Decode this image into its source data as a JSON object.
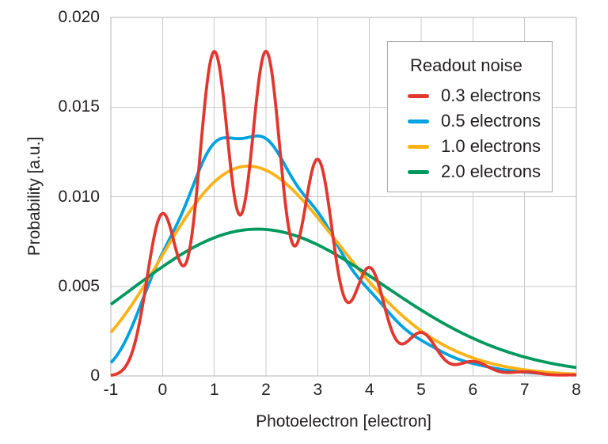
{
  "figure": {
    "background": "#ffffff"
  },
  "chart_data": {
    "type": "line",
    "title": "",
    "xlabel": "Photoelectron [electron]",
    "ylabel": "Probability [a.u.]",
    "xlim": [
      -1,
      8
    ],
    "ylim": [
      0,
      0.02
    ],
    "xticks": {
      "values": [
        -1,
        0,
        1,
        2,
        3,
        4,
        5,
        6,
        7,
        8
      ],
      "labels": [
        "-1",
        "0",
        "1",
        "2",
        "3",
        "4",
        "5",
        "6",
        "7",
        "8"
      ]
    },
    "yticks": {
      "values": [
        0,
        0.005,
        0.01,
        0.015,
        0.02
      ],
      "labels": [
        "0",
        "0.005",
        "0.010",
        "0.015",
        "0.020"
      ]
    },
    "grid": true,
    "legend": {
      "title": "Readout noise",
      "position": "upper-right"
    },
    "style": {
      "grid_color": "#c9c9c9",
      "frame_color": "#b3b3b3",
      "text_color": "#231f20",
      "background": "#ffffff",
      "line_width": 3.8
    },
    "model": {
      "description": "Poisson photon-number distribution (mean 2 photoelectrons) convolved with Gaussian readout noise of width sigma; amplitude in arbitrary units",
      "poisson_mean": 2,
      "amplitude_scale": 0.05,
      "sample_step": 0.02,
      "n_max": 14
    },
    "series": [
      {
        "label": "0.3 electrons",
        "sigma": 0.3,
        "color": "#e1372e",
        "key_points": [
          {
            "x": -1,
            "y": 0.0001
          },
          {
            "x": 0,
            "y": 0.009
          },
          {
            "x": 0.5,
            "y": 0.0067
          },
          {
            "x": 1,
            "y": 0.0181
          },
          {
            "x": 1.5,
            "y": 0.009
          },
          {
            "x": 2,
            "y": 0.0181
          },
          {
            "x": 2.5,
            "y": 0.0073
          },
          {
            "x": 3,
            "y": 0.012
          },
          {
            "x": 3.5,
            "y": 0.0042
          },
          {
            "x": 4,
            "y": 0.006
          },
          {
            "x": 5,
            "y": 0.0024
          },
          {
            "x": 6,
            "y": 0.0008
          },
          {
            "x": 8,
            "y": 0.0
          }
        ]
      },
      {
        "label": "0.5 electrons",
        "sigma": 0.5,
        "color": "#00a2e0",
        "key_points": [
          {
            "x": -1,
            "y": 0.0008
          },
          {
            "x": 0,
            "y": 0.0069
          },
          {
            "x": 1,
            "y": 0.013
          },
          {
            "x": 1.5,
            "y": 0.0133
          },
          {
            "x": 2,
            "y": 0.0132
          },
          {
            "x": 3,
            "y": 0.0092
          },
          {
            "x": 4,
            "y": 0.0048
          },
          {
            "x": 5,
            "y": 0.002
          },
          {
            "x": 6,
            "y": 0.0007
          },
          {
            "x": 8,
            "y": 0.0001
          }
        ]
      },
      {
        "label": "1.0 electrons",
        "sigma": 1.0,
        "color": "#f9b317",
        "key_points": [
          {
            "x": -1,
            "y": 0.0025
          },
          {
            "x": 0,
            "y": 0.0067
          },
          {
            "x": 1,
            "y": 0.0108
          },
          {
            "x": 1.8,
            "y": 0.0117
          },
          {
            "x": 3,
            "y": 0.0088
          },
          {
            "x": 4,
            "y": 0.005
          },
          {
            "x": 5,
            "y": 0.0022
          },
          {
            "x": 6,
            "y": 0.0008
          },
          {
            "x": 8,
            "y": 0.0002
          }
        ]
      },
      {
        "label": "2.0 electrons",
        "sigma": 2.0,
        "color": "#00985e",
        "key_points": [
          {
            "x": -1,
            "y": 0.004
          },
          {
            "x": 0,
            "y": 0.0061
          },
          {
            "x": 1.8,
            "y": 0.0082
          },
          {
            "x": 3,
            "y": 0.0075
          },
          {
            "x": 4,
            "y": 0.0059
          },
          {
            "x": 5,
            "y": 0.004
          },
          {
            "x": 6,
            "y": 0.0024
          },
          {
            "x": 7,
            "y": 0.0012
          },
          {
            "x": 8,
            "y": 0.0005
          }
        ]
      }
    ],
    "draw_order": [
      1,
      2,
      3,
      0
    ]
  }
}
